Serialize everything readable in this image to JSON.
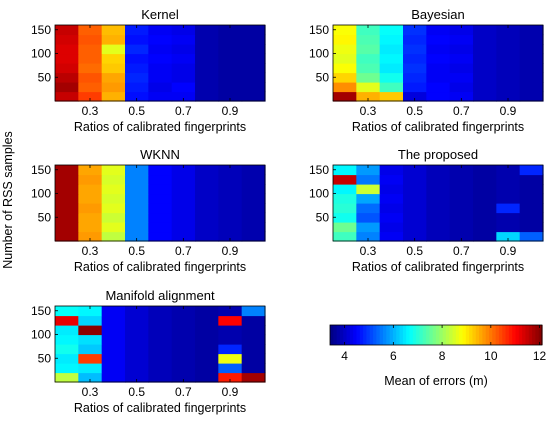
{
  "figure": {
    "shared_ylabel": "Number of RSS samples",
    "colorbar": {
      "label": "Mean of errors (m)",
      "range": [
        3.4,
        12.1
      ],
      "ticks": [
        "4",
        "6",
        "8",
        "10",
        "12"
      ],
      "colormap": "jet"
    }
  },
  "chart_data": [
    {
      "type": "heatmap",
      "title": "Kernel",
      "xlabel": "Ratios of calibrated fingerprints",
      "ylabel": "",
      "x_ticks": [
        "0.3",
        "0.5",
        "0.7",
        "0.9"
      ],
      "y_ticks": [
        "50",
        "100",
        "150"
      ],
      "x_centers": [
        0.2,
        0.3,
        0.4,
        0.5,
        0.6,
        0.7,
        0.8,
        0.9,
        1.0
      ],
      "y_centers": [
        10,
        30,
        50,
        70,
        90,
        110,
        130,
        150
      ],
      "xlim": [
        0.15,
        1.05
      ],
      "ylim": [
        0,
        160
      ],
      "values": [
        [
          11.5,
          10.5,
          9.5,
          4.6,
          4.4,
          4.4,
          3.8,
          3.7,
          3.7
        ],
        [
          11.8,
          10.2,
          9.7,
          4.7,
          4.3,
          4.5,
          3.8,
          3.7,
          3.7
        ],
        [
          11.6,
          10.3,
          9.6,
          4.8,
          4.4,
          4.3,
          3.8,
          3.7,
          3.7
        ],
        [
          11.4,
          10.1,
          9.3,
          4.7,
          4.4,
          4.3,
          3.8,
          3.7,
          3.7
        ],
        [
          11.3,
          10.2,
          9.2,
          4.6,
          4.5,
          4.4,
          3.8,
          3.7,
          3.7
        ],
        [
          11.3,
          10.2,
          8.6,
          4.8,
          4.4,
          4.3,
          3.8,
          3.7,
          3.7
        ],
        [
          11.4,
          10.3,
          9.5,
          4.6,
          4.5,
          4.4,
          3.8,
          3.7,
          3.7
        ],
        [
          11.5,
          10.2,
          9.4,
          4.7,
          4.4,
          4.3,
          3.8,
          3.7,
          3.7
        ]
      ]
    },
    {
      "type": "heatmap",
      "title": "Bayesian",
      "xlabel": "Ratios of calibrated fingerprints",
      "ylabel": "",
      "x_ticks": [
        "0.3",
        "0.5",
        "0.7",
        "0.9"
      ],
      "y_ticks": [
        "50",
        "100",
        "150"
      ],
      "x_centers": [
        0.2,
        0.3,
        0.4,
        0.5,
        0.6,
        0.7,
        0.8,
        0.9,
        1.0
      ],
      "y_centers": [
        10,
        30,
        50,
        70,
        90,
        110,
        130,
        150
      ],
      "xlim": [
        0.15,
        1.05
      ],
      "ylim": [
        0,
        160
      ],
      "values": [
        [
          11.8,
          9.5,
          9.3,
          4.2,
          4.5,
          4.4,
          4.0,
          3.9,
          3.8
        ],
        [
          9.8,
          8.6,
          7.2,
          4.7,
          4.5,
          4.3,
          4.0,
          3.9,
          3.8
        ],
        [
          9.2,
          7.6,
          6.8,
          4.8,
          4.4,
          4.4,
          4.0,
          3.9,
          3.8
        ],
        [
          8.8,
          7.3,
          6.5,
          4.9,
          4.4,
          4.3,
          4.0,
          3.9,
          3.8
        ],
        [
          8.6,
          7.2,
          6.6,
          4.8,
          4.5,
          4.4,
          4.0,
          3.9,
          3.8
        ],
        [
          8.7,
          7.4,
          6.5,
          4.9,
          4.4,
          4.3,
          4.0,
          3.9,
          3.8
        ],
        [
          8.9,
          7.3,
          6.6,
          4.8,
          4.5,
          4.4,
          4.0,
          3.9,
          3.8
        ],
        [
          8.8,
          7.2,
          6.7,
          4.9,
          4.4,
          4.3,
          4.0,
          3.9,
          3.8
        ]
      ]
    },
    {
      "type": "heatmap",
      "title": "WKNN",
      "xlabel": "Ratios of calibrated fingerprints",
      "ylabel": "",
      "x_ticks": [
        "0.3",
        "0.5",
        "0.7",
        "0.9"
      ],
      "y_ticks": [
        "50",
        "100",
        "150"
      ],
      "x_centers": [
        0.2,
        0.3,
        0.4,
        0.5,
        0.6,
        0.7,
        0.8,
        0.9,
        1.0
      ],
      "y_centers": [
        10,
        30,
        50,
        70,
        90,
        110,
        130,
        150
      ],
      "xlim": [
        0.15,
        1.05
      ],
      "ylim": [
        0,
        160
      ],
      "values": [
        [
          11.8,
          9.7,
          8.3,
          5.6,
          4.5,
          4.3,
          4.0,
          3.9,
          3.8
        ],
        [
          11.8,
          9.6,
          8.6,
          5.6,
          4.5,
          4.3,
          4.0,
          3.9,
          3.8
        ],
        [
          11.8,
          9.6,
          8.4,
          5.6,
          4.5,
          4.3,
          4.0,
          3.9,
          3.8
        ],
        [
          11.8,
          9.7,
          8.6,
          5.6,
          4.5,
          4.3,
          4.0,
          3.9,
          3.8
        ],
        [
          11.8,
          9.6,
          8.5,
          5.6,
          4.5,
          4.3,
          4.0,
          3.9,
          3.8
        ],
        [
          11.8,
          9.6,
          8.6,
          5.6,
          4.5,
          4.3,
          4.0,
          3.9,
          3.8
        ],
        [
          11.8,
          9.7,
          8.5,
          5.6,
          4.5,
          4.3,
          4.0,
          3.9,
          3.8
        ],
        [
          11.8,
          9.6,
          8.6,
          5.6,
          4.5,
          4.3,
          4.0,
          3.9,
          3.8
        ]
      ]
    },
    {
      "type": "heatmap",
      "title": "The proposed",
      "xlabel": "Ratios of calibrated fingerprints",
      "ylabel": "",
      "x_ticks": [
        "0.3",
        "0.5",
        "0.7",
        "0.9"
      ],
      "y_ticks": [
        "50",
        "100",
        "150"
      ],
      "x_centers": [
        0.2,
        0.3,
        0.4,
        0.5,
        0.6,
        0.7,
        0.8,
        0.9,
        1.0
      ],
      "y_centers": [
        10,
        30,
        50,
        70,
        90,
        110,
        130,
        150
      ],
      "xlim": [
        0.15,
        1.05
      ],
      "ylim": [
        0,
        160
      ],
      "values": [
        [
          7.2,
          5.6,
          4.4,
          4.1,
          3.9,
          3.8,
          3.7,
          6.3,
          5.3
        ],
        [
          7.6,
          5.8,
          4.3,
          4.1,
          3.9,
          3.8,
          3.7,
          3.8,
          3.7
        ],
        [
          6.8,
          5.2,
          4.4,
          4.1,
          3.9,
          3.8,
          3.7,
          3.8,
          3.7
        ],
        [
          7.0,
          5.4,
          4.3,
          4.1,
          3.9,
          3.8,
          3.7,
          4.8,
          3.7
        ],
        [
          6.9,
          5.9,
          4.4,
          4.1,
          3.9,
          3.8,
          3.7,
          3.8,
          3.7
        ],
        [
          6.6,
          8.4,
          4.3,
          4.1,
          3.9,
          3.8,
          3.7,
          3.8,
          3.7
        ],
        [
          11.5,
          5.5,
          4.4,
          4.1,
          3.9,
          3.8,
          3.7,
          3.8,
          3.7
        ],
        [
          6.6,
          5.8,
          4.3,
          4.1,
          3.9,
          3.8,
          3.7,
          3.8,
          4.8
        ]
      ]
    },
    {
      "type": "heatmap",
      "title": "Manifold alignment",
      "xlabel": "Ratios of calibrated fingerprints",
      "ylabel": "",
      "x_ticks": [
        "0.3",
        "0.5",
        "0.7",
        "0.9"
      ],
      "y_ticks": [
        "50",
        "100",
        "150"
      ],
      "x_centers": [
        0.2,
        0.3,
        0.4,
        0.5,
        0.6,
        0.7,
        0.8,
        0.9,
        1.0
      ],
      "y_centers": [
        10,
        30,
        50,
        70,
        90,
        110,
        130,
        150
      ],
      "xlim": [
        0.15,
        1.05
      ],
      "ylim": [
        0,
        160
      ],
      "values": [
        [
          8.3,
          6.1,
          4.4,
          4.1,
          3.9,
          3.8,
          3.7,
          10.8,
          11.8
        ],
        [
          6.6,
          6.5,
          4.4,
          4.1,
          3.9,
          3.8,
          3.7,
          5.3,
          3.7
        ],
        [
          6.5,
          10.5,
          4.4,
          4.1,
          3.9,
          3.8,
          3.7,
          8.7,
          3.7
        ],
        [
          6.8,
          6.2,
          4.4,
          4.1,
          3.9,
          3.8,
          3.7,
          4.8,
          3.7
        ],
        [
          6.6,
          6.4,
          4.4,
          4.1,
          3.9,
          3.8,
          3.7,
          3.8,
          3.7
        ],
        [
          6.5,
          12.0,
          4.4,
          4.1,
          3.9,
          3.8,
          3.7,
          3.8,
          3.7
        ],
        [
          11.2,
          6.3,
          4.4,
          4.1,
          3.9,
          3.8,
          3.7,
          11.0,
          3.7
        ],
        [
          6.7,
          6.6,
          4.4,
          4.1,
          3.9,
          3.8,
          3.7,
          3.8,
          5.6
        ]
      ]
    }
  ]
}
